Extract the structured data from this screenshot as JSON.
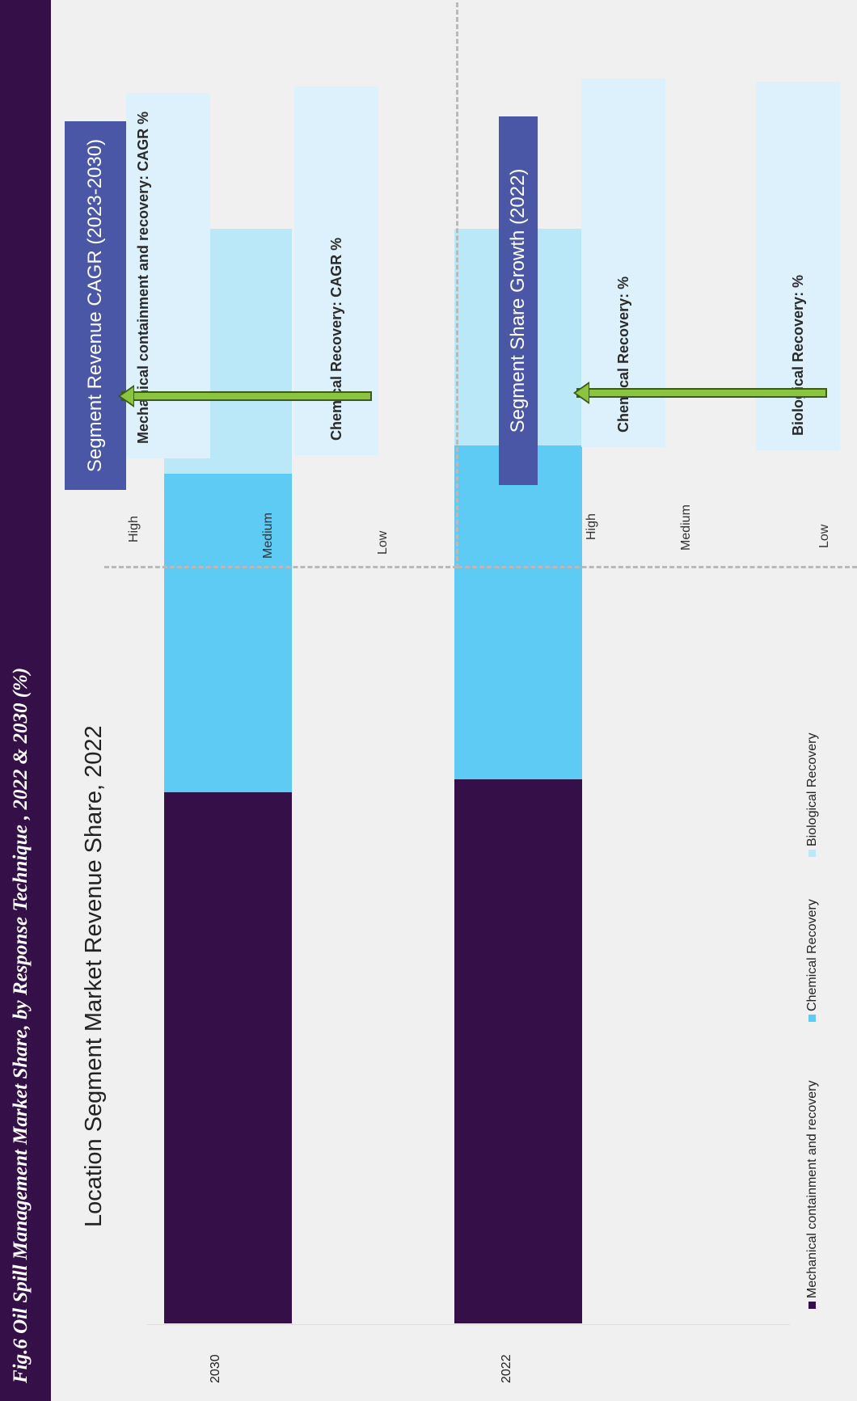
{
  "header": {
    "title": "Fig.6  Oil Spill Management Market Share, by  Response Technique , 2022 & 2030 (%)"
  },
  "chart_data": {
    "type": "bar",
    "stacked": true,
    "orientation": "horizontal",
    "title": "Location Segment Market Revenue Share, 2022",
    "categories": [
      "2030",
      "2022"
    ],
    "series": [
      {
        "name": "Mechanical containment and recovery",
        "color": "#350f47",
        "values": [
          48.5,
          49.7
        ]
      },
      {
        "name": "Chemical Recovery",
        "color": "#5ecbf5",
        "values": [
          29.1,
          30.5
        ]
      },
      {
        "name": "Biological Recovery",
        "color": "#bae8f9",
        "values": [
          22.4,
          19.8
        ]
      }
    ],
    "xlim": [
      0,
      100
    ],
    "legend_position": "bottom"
  },
  "scale": {
    "high": "High",
    "medium": "Medium",
    "low": "Low"
  },
  "panel1": {
    "heading": "Segment Revenue CAGR (2023-2030)",
    "card1": "Mechanical containment and recovery: CAGR %",
    "card2": "Chemical Recovery: CAGR %"
  },
  "panel2": {
    "heading": "Segment Share Growth (2022)",
    "card1": "Chemical Recovery: %",
    "card2": "Biological Recovery: %"
  },
  "colors": {
    "arrow": "#8bc53f",
    "header": "#350f47",
    "segment_heading": "#4a56a6",
    "card": "#dcf1fb"
  }
}
